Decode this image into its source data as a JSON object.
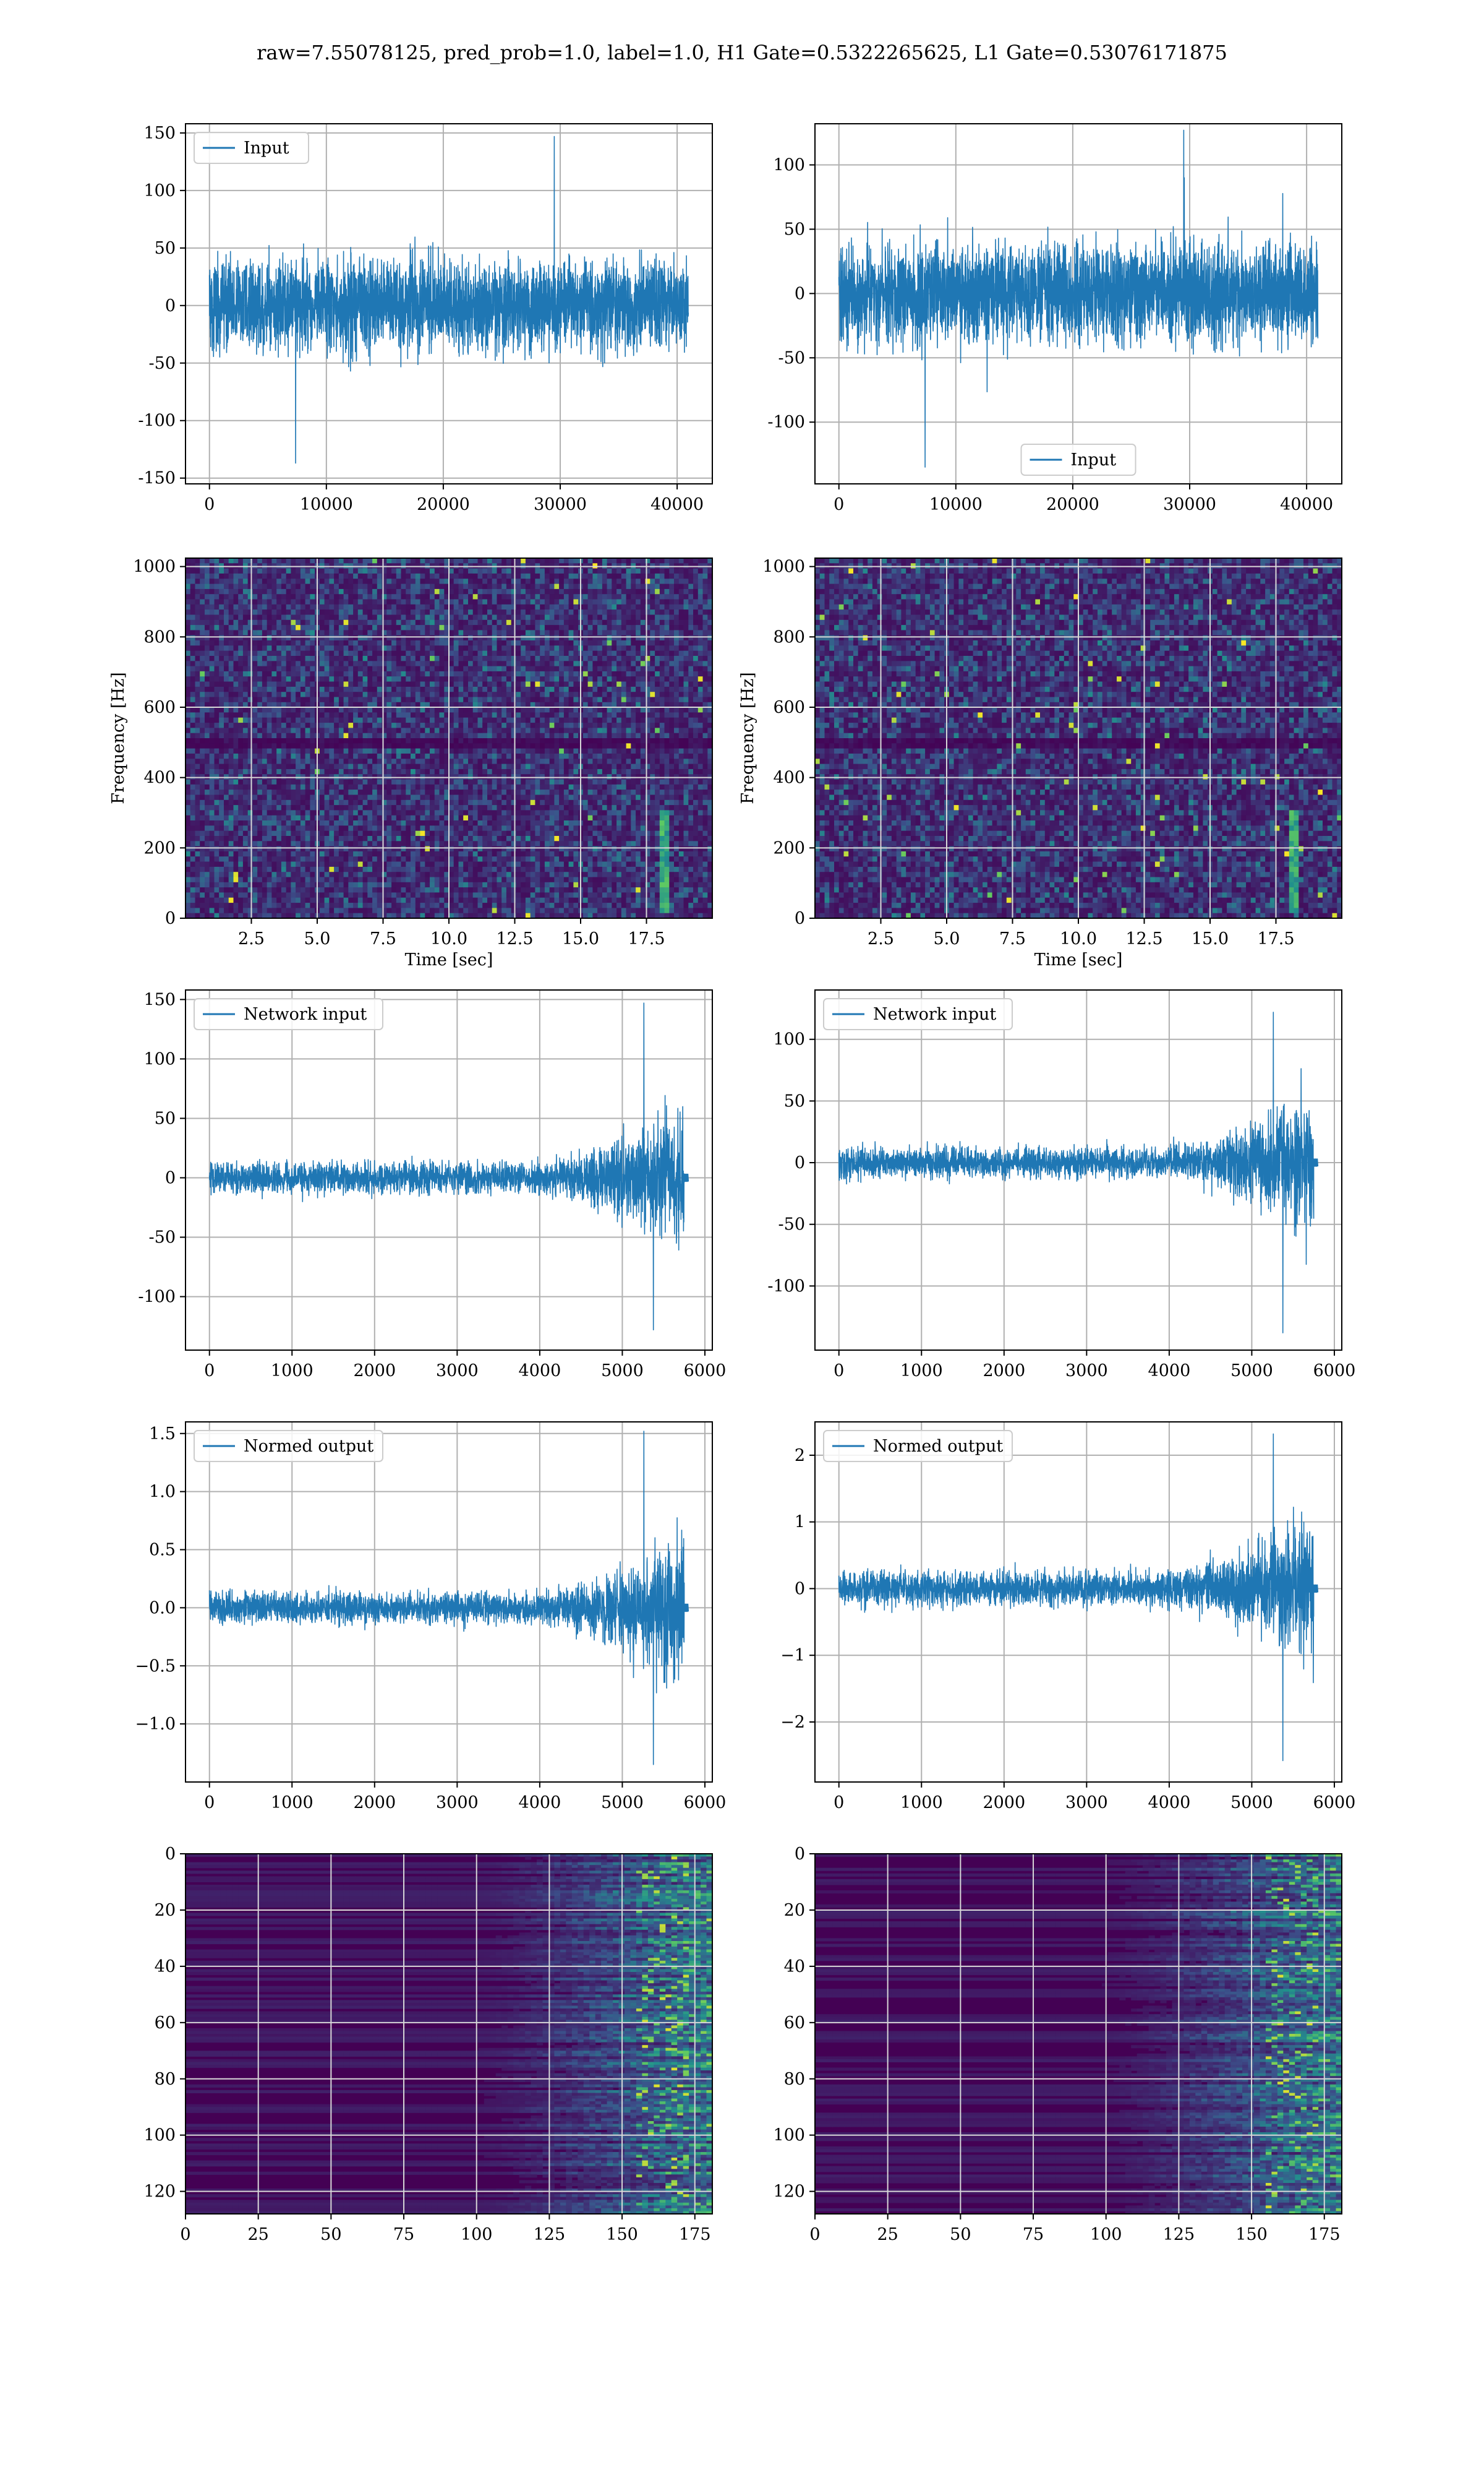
{
  "figure": {
    "title": "raw=7.55078125, pred_prob=1.0, label=1.0, H1 Gate=0.5322265625, L1 Gate=0.53076171875",
    "colors": {
      "line": "#1f77b4",
      "grid": "#b0b0b0",
      "viridis_dark": "#440154",
      "viridis_mid": "#21918c",
      "viridis_bright": "#fde725"
    }
  },
  "chart_data": [
    {
      "id": "h1-input",
      "type": "line",
      "title": "",
      "xlabel": "",
      "ylabel": "",
      "xlim": [
        -2048,
        43008
      ],
      "ylim": [
        -155,
        158
      ],
      "xticks": [
        0,
        10000,
        20000,
        30000,
        40000
      ],
      "yticks": [
        -150,
        -100,
        -50,
        0,
        50,
        100,
        150
      ],
      "grid": true,
      "legend": {
        "position": "upper left"
      },
      "series": [
        {
          "name": "Input",
          "shape": "stationary-noise",
          "x_range": [
            0,
            40960
          ],
          "band": [
            -48,
            48
          ],
          "peak_max": 147,
          "peak_min": -137
        }
      ]
    },
    {
      "id": "l1-input",
      "type": "line",
      "title": "",
      "xlabel": "",
      "ylabel": "",
      "xlim": [
        -2048,
        43008
      ],
      "ylim": [
        -148,
        132
      ],
      "xticks": [
        0,
        10000,
        20000,
        30000,
        40000
      ],
      "yticks": [
        -100,
        -50,
        0,
        50,
        100
      ],
      "grid": true,
      "legend": {
        "position": "lower center"
      },
      "series": [
        {
          "name": "Input",
          "shape": "stationary-noise",
          "x_range": [
            0,
            40960
          ],
          "band": [
            -47,
            47
          ],
          "peak_max": 127,
          "peak_min": -135
        }
      ]
    },
    {
      "id": "h1-spectrogram",
      "type": "heatmap",
      "title": "",
      "xlabel": "Time [sec]",
      "ylabel": "Frequency [Hz]",
      "xlim": [
        0,
        20
      ],
      "ylim": [
        0,
        1024
      ],
      "xticks": [
        "2.5",
        "5.0",
        "7.5",
        "10.0",
        "12.5",
        "15.0",
        "17.5"
      ],
      "yticks": [
        0,
        200,
        400,
        600,
        800,
        1000
      ],
      "grid": true,
      "colormap": "viridis",
      "dark_band_hz": 500,
      "chirp": {
        "time_sec": 18.2,
        "freq_range_hz": [
          20,
          300
        ]
      }
    },
    {
      "id": "l1-spectrogram",
      "type": "heatmap",
      "title": "",
      "xlabel": "Time [sec]",
      "ylabel": "Frequency [Hz]",
      "xlim": [
        0,
        20
      ],
      "ylim": [
        0,
        1024
      ],
      "xticks": [
        "2.5",
        "5.0",
        "7.5",
        "10.0",
        "12.5",
        "15.0",
        "17.5"
      ],
      "yticks": [
        0,
        200,
        400,
        600,
        800,
        1000
      ],
      "grid": true,
      "colormap": "viridis",
      "dark_band_hz": 500,
      "chirp": {
        "time_sec": 18.2,
        "freq_range_hz": [
          20,
          300
        ]
      }
    },
    {
      "id": "h1-network-input",
      "type": "line",
      "title": "",
      "xlabel": "",
      "ylabel": "",
      "xlim": [
        -290,
        6090
      ],
      "ylim": [
        -145,
        158
      ],
      "xticks": [
        0,
        1000,
        2000,
        3000,
        4000,
        5000,
        6000
      ],
      "yticks": [
        -100,
        -50,
        0,
        50,
        100,
        150
      ],
      "grid": true,
      "legend": {
        "position": "upper left"
      },
      "series": [
        {
          "name": "Network input",
          "shape": "chirp-burst",
          "x_range": [
            0,
            5800
          ],
          "signal_end": 5750,
          "baseline_band": [
            -16,
            16
          ],
          "burst_start": 4500,
          "peak_max": 147,
          "peak_min": -128
        }
      ]
    },
    {
      "id": "l1-network-input",
      "type": "line",
      "title": "",
      "xlabel": "",
      "ylabel": "",
      "xlim": [
        -290,
        6090
      ],
      "ylim": [
        -152,
        140
      ],
      "xticks": [
        0,
        1000,
        2000,
        3000,
        4000,
        5000,
        6000
      ],
      "yticks": [
        -100,
        -50,
        0,
        50,
        100
      ],
      "grid": true,
      "legend": {
        "position": "upper left"
      },
      "series": [
        {
          "name": "Network input",
          "shape": "chirp-burst",
          "x_range": [
            0,
            5800
          ],
          "signal_end": 5750,
          "baseline_band": [
            -15,
            15
          ],
          "burst_start": 4500,
          "peak_max": 122,
          "peak_min": -138
        }
      ]
    },
    {
      "id": "h1-normed-output",
      "type": "line",
      "title": "",
      "xlabel": "",
      "ylabel": "",
      "xlim": [
        -290,
        6090
      ],
      "ylim": [
        -1.5,
        1.6
      ],
      "xticks": [
        0,
        1000,
        2000,
        3000,
        4000,
        5000,
        6000
      ],
      "yticks": [
        "−1.0",
        "−0.5",
        "0.0",
        "0.5",
        "1.0",
        "1.5"
      ],
      "grid": true,
      "legend": {
        "position": "upper left"
      },
      "series": [
        {
          "name": "Normed output",
          "shape": "chirp-burst",
          "x_range": [
            0,
            5800
          ],
          "signal_end": 5750,
          "baseline_band": [
            -0.16,
            0.16
          ],
          "burst_start": 4500,
          "peak_max": 1.52,
          "peak_min": -1.35
        }
      ]
    },
    {
      "id": "l1-normed-output",
      "type": "line",
      "title": "",
      "xlabel": "",
      "ylabel": "",
      "xlim": [
        -290,
        6090
      ],
      "ylim": [
        -2.9,
        2.5
      ],
      "xticks": [
        0,
        1000,
        2000,
        3000,
        4000,
        5000,
        6000
      ],
      "yticks": [
        "−2",
        "−1",
        "0",
        "1",
        "2"
      ],
      "grid": true,
      "legend": {
        "position": "upper left"
      },
      "series": [
        {
          "name": "Normed output",
          "shape": "chirp-burst",
          "x_range": [
            0,
            5800
          ],
          "signal_end": 5750,
          "baseline_band": [
            -0.3,
            0.3
          ],
          "burst_start": 4500,
          "peak_max": 2.32,
          "peak_min": -2.58
        }
      ]
    },
    {
      "id": "h1-feature-map",
      "type": "heatmap",
      "title": "",
      "xlabel": "",
      "ylabel": "",
      "xlim": [
        0,
        181
      ],
      "ylim": [
        128,
        0
      ],
      "xticks": [
        0,
        25,
        50,
        75,
        100,
        125,
        150,
        175
      ],
      "yticks": [
        0,
        20,
        40,
        60,
        80,
        100,
        120
      ],
      "grid": true,
      "colormap": "viridis",
      "active_region": {
        "x_start": 118,
        "x_end": 181
      }
    },
    {
      "id": "l1-feature-map",
      "type": "heatmap",
      "title": "",
      "xlabel": "",
      "ylabel": "",
      "xlim": [
        0,
        181
      ],
      "ylim": [
        128,
        0
      ],
      "xticks": [
        0,
        25,
        50,
        75,
        100,
        125,
        150,
        175
      ],
      "yticks": [
        0,
        20,
        40,
        60,
        80,
        100,
        120
      ],
      "grid": true,
      "colormap": "viridis",
      "active_region": {
        "x_start": 118,
        "x_end": 181
      }
    }
  ]
}
